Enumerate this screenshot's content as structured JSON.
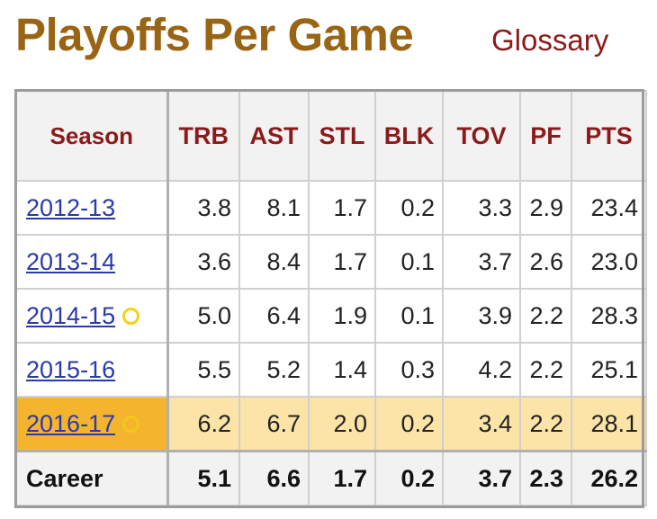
{
  "header": {
    "title": "Playoffs Per Game",
    "glossary_label": "Glossary"
  },
  "table": {
    "columns": [
      "Season",
      "TRB",
      "AST",
      "STL",
      "BLK",
      "TOV",
      "PF",
      "PTS"
    ],
    "rows": [
      {
        "season": "2012-13",
        "champion": false,
        "highlight": false,
        "values": [
          "3.8",
          "8.1",
          "1.7",
          "0.2",
          "3.3",
          "2.9",
          "23.4"
        ]
      },
      {
        "season": "2013-14",
        "champion": false,
        "highlight": false,
        "values": [
          "3.6",
          "8.4",
          "1.7",
          "0.1",
          "3.7",
          "2.6",
          "23.0"
        ]
      },
      {
        "season": "2014-15",
        "champion": true,
        "highlight": false,
        "values": [
          "5.0",
          "6.4",
          "1.9",
          "0.1",
          "3.9",
          "2.2",
          "28.3"
        ]
      },
      {
        "season": "2015-16",
        "champion": false,
        "highlight": false,
        "values": [
          "5.5",
          "5.2",
          "1.4",
          "0.3",
          "4.2",
          "2.2",
          "25.1"
        ]
      },
      {
        "season": "2016-17",
        "champion": true,
        "highlight": true,
        "values": [
          "6.2",
          "6.7",
          "2.0",
          "0.2",
          "3.4",
          "2.2",
          "28.1"
        ]
      }
    ],
    "career": {
      "label": "Career",
      "values": [
        "5.1",
        "6.6",
        "1.7",
        "0.2",
        "3.7",
        "2.3",
        "26.2"
      ]
    }
  },
  "icons": {
    "champion": "championship-ring-icon"
  },
  "colors": {
    "title": "#996515",
    "header_text": "#8b1a1a",
    "link": "#2a3aa8",
    "highlight_row": "#fce4a8",
    "highlight_season": "#f5b42e",
    "champion_ring": "#f2d21b"
  }
}
